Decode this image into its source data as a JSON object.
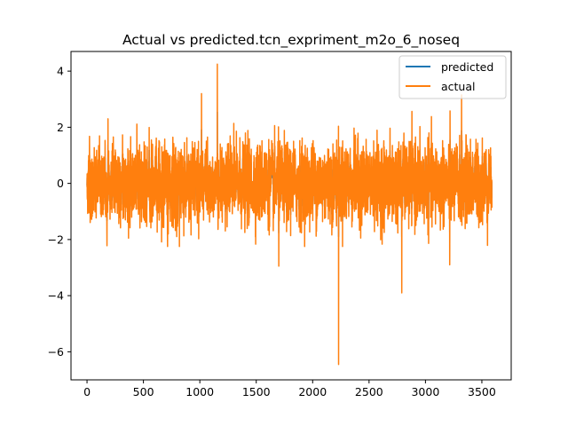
{
  "chart_data": {
    "type": "line",
    "title": "Actual vs predicted.tcn_expriment_m2o_6_noseq",
    "xlabel": "",
    "ylabel": "",
    "xlim": [
      -142,
      3760
    ],
    "ylim": [
      -7.0,
      4.7
    ],
    "xticks": [
      0,
      500,
      1000,
      1500,
      2000,
      2500,
      3000,
      3500
    ],
    "yticks": [
      -6,
      -4,
      -2,
      0,
      2,
      4
    ],
    "grid": false,
    "legend_position": "top-right",
    "n_points": 3590,
    "series": [
      {
        "name": "predicted",
        "color": "#1f77b4",
        "note": "fully overdrawn by actual",
        "y_range": [
          -1.9,
          3.1
        ]
      },
      {
        "name": "actual",
        "color": "#ff7f0e",
        "y_range": [
          -6.45,
          4.25
        ],
        "notable_points": [
          {
            "x": 1155,
            "y": 4.25
          },
          {
            "x": 1015,
            "y": 3.2
          },
          {
            "x": 3320,
            "y": 3.15
          },
          {
            "x": 2230,
            "y": -6.45
          },
          {
            "x": 2790,
            "y": -3.9
          },
          {
            "x": 1700,
            "y": -2.95
          },
          {
            "x": 3215,
            "y": -2.9
          }
        ]
      }
    ]
  }
}
